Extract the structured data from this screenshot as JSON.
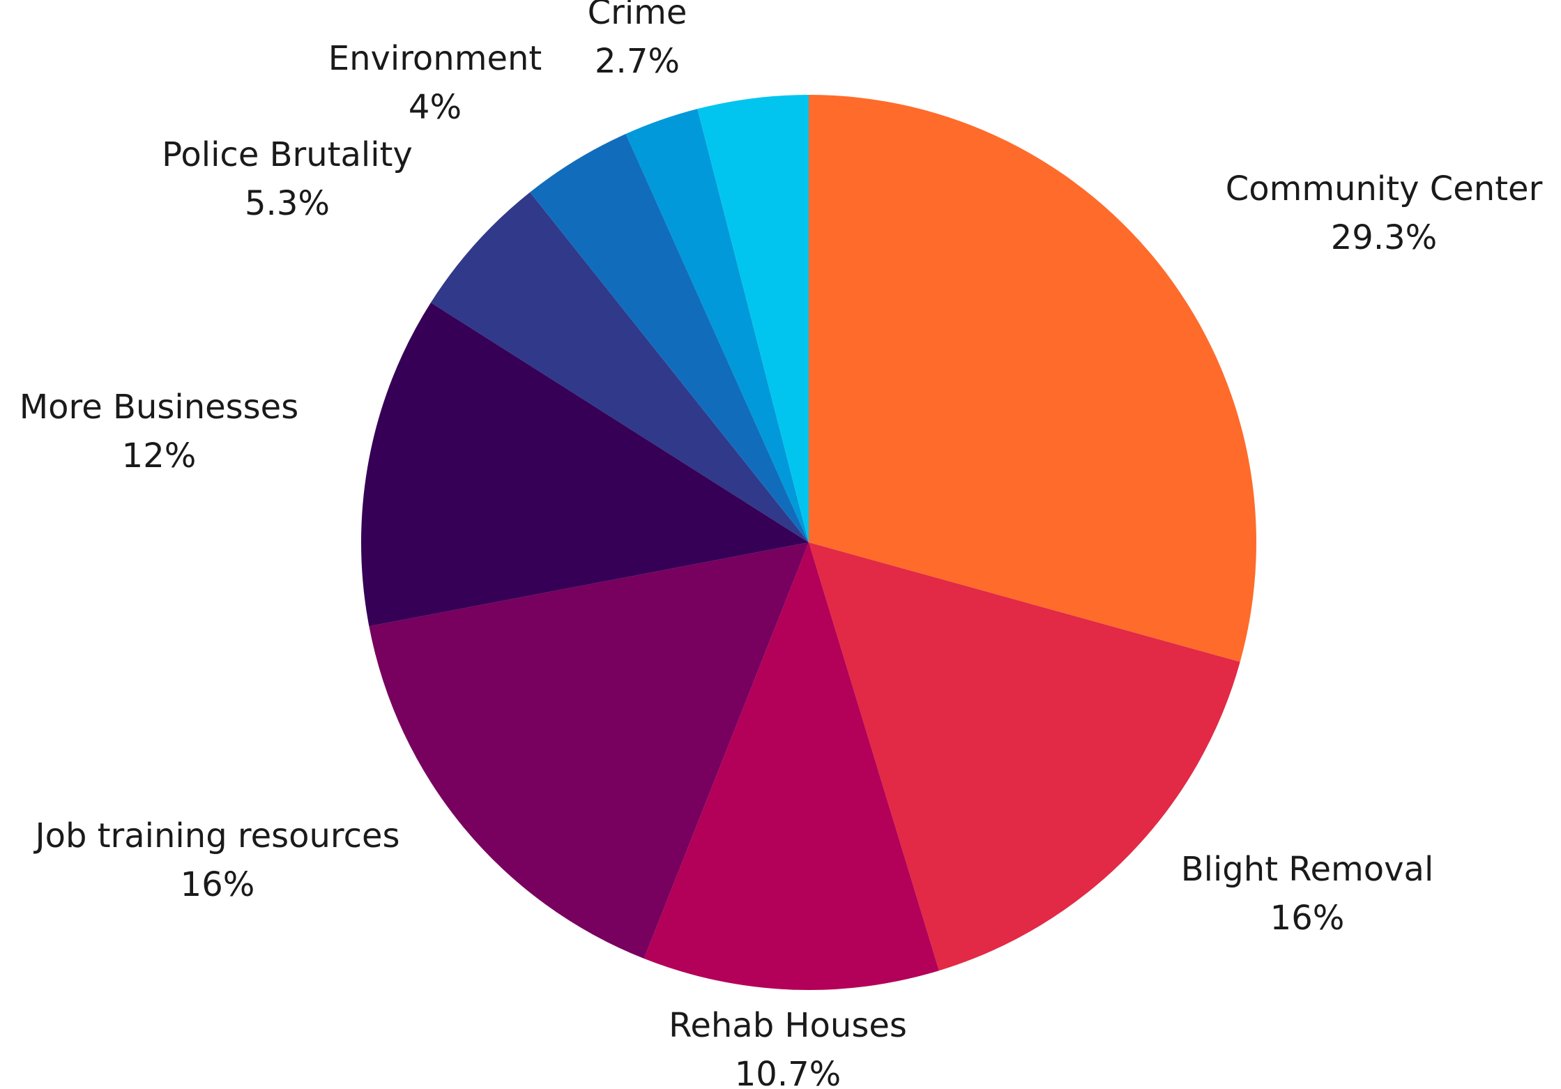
{
  "chart_data": {
    "type": "pie",
    "title": "",
    "start_angle_deg": 0,
    "direction": "clockwise",
    "slices": [
      {
        "label": "Community Center",
        "value_label": "29.3%",
        "value": 29.3,
        "color": "#FF6B2A"
      },
      {
        "label": "Blight Removal",
        "value_label": "16%",
        "value": 16,
        "color": "#E22946"
      },
      {
        "label": "Rehab Houses",
        "value_label": "10.7%",
        "value": 10.7,
        "color": "#B30058"
      },
      {
        "label": "Job training resources",
        "value_label": "16%",
        "value": 16,
        "color": "#78005E"
      },
      {
        "label": "More Businesses",
        "value_label": "12%",
        "value": 12,
        "color": "#360056"
      },
      {
        "label": "Police Brutality",
        "value_label": "5.3%",
        "value": 5.3,
        "color": "#30398A"
      },
      {
        "label": "Environment",
        "value_label": "4%",
        "value": 4,
        "color": "#116DBC"
      },
      {
        "label": "Crime",
        "value_label": "2.7%",
        "value": 2.7,
        "color": "#0199DA"
      },
      {
        "label": "",
        "value_label": "",
        "value": 4,
        "color": "#02C5EF"
      }
    ]
  }
}
